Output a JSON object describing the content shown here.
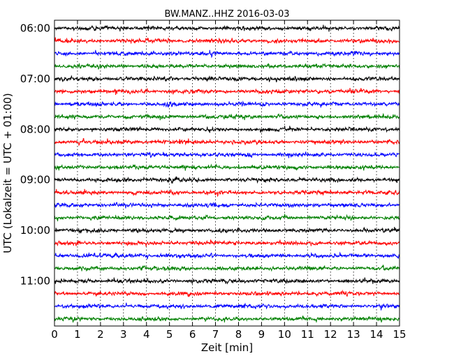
{
  "chart_data": {
    "type": "line",
    "title": "BW.MANZ..HHZ 2016-03-03",
    "xlabel": "Zeit  [min]",
    "ylabel": "UTC (Lokalzeit = UTC + 01:00)",
    "xlim": [
      0,
      15
    ],
    "x_ticks": [
      "0",
      "1",
      "2",
      "3",
      "4",
      "5",
      "6",
      "7",
      "8",
      "9",
      "10",
      "11",
      "12",
      "13",
      "14",
      "15"
    ],
    "y_tick_labels": [
      "06:00",
      "07:00",
      "08:00",
      "09:00",
      "10:00",
      "11:00"
    ],
    "grid": "vertical dotted",
    "colors": [
      "#000000",
      "#ff0000",
      "#0000ff",
      "#008000"
    ],
    "rows": [
      {
        "start": "06:00",
        "color": "#000000"
      },
      {
        "start": "06:15",
        "color": "#ff0000"
      },
      {
        "start": "06:30",
        "color": "#0000ff"
      },
      {
        "start": "06:45",
        "color": "#008000"
      },
      {
        "start": "07:00",
        "color": "#000000"
      },
      {
        "start": "07:15",
        "color": "#ff0000"
      },
      {
        "start": "07:30",
        "color": "#0000ff"
      },
      {
        "start": "07:45",
        "color": "#008000"
      },
      {
        "start": "08:00",
        "color": "#000000"
      },
      {
        "start": "08:15",
        "color": "#ff0000"
      },
      {
        "start": "08:30",
        "color": "#0000ff"
      },
      {
        "start": "08:45",
        "color": "#008000"
      },
      {
        "start": "09:00",
        "color": "#000000"
      },
      {
        "start": "09:15",
        "color": "#ff0000"
      },
      {
        "start": "09:30",
        "color": "#0000ff"
      },
      {
        "start": "09:45",
        "color": "#008000"
      },
      {
        "start": "10:00",
        "color": "#000000"
      },
      {
        "start": "10:15",
        "color": "#ff0000"
      },
      {
        "start": "10:30",
        "color": "#0000ff"
      },
      {
        "start": "10:45",
        "color": "#008000"
      },
      {
        "start": "11:00",
        "color": "#000000"
      },
      {
        "start": "11:15",
        "color": "#ff0000"
      },
      {
        "start": "11:30",
        "color": "#0000ff"
      },
      {
        "start": "11:45",
        "color": "#008000"
      }
    ]
  }
}
